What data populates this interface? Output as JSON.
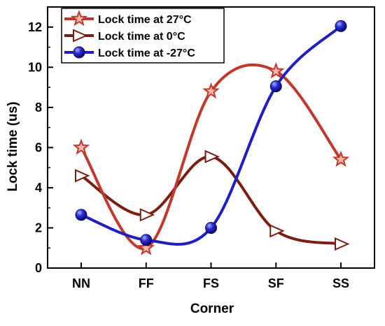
{
  "chart_data": {
    "type": "line",
    "categories": [
      "NN",
      "FF",
      "FS",
      "SF",
      "SS"
    ],
    "xlabel": "Corner",
    "ylabel": "Lock time (us)",
    "ylim": [
      0,
      13
    ],
    "yticks": [
      0,
      2,
      4,
      6,
      8,
      10,
      12
    ],
    "smooth": true,
    "grid": false,
    "legend_position": "top-left",
    "series": [
      {
        "name": "Lock time at 27°C",
        "values": [
          6.0,
          1.0,
          8.8,
          9.8,
          5.4
        ],
        "color": "#c0392b",
        "marker": "star"
      },
      {
        "name": "Lock time at 0°C",
        "values": [
          4.6,
          2.65,
          5.55,
          1.85,
          1.2
        ],
        "color": "#7b1e12",
        "marker": "triangle-right"
      },
      {
        "name": "Lock time at -27°C",
        "values": [
          2.65,
          1.4,
          2.0,
          9.05,
          12.05
        ],
        "color": "#1f1fbf",
        "marker": "sphere"
      }
    ]
  }
}
